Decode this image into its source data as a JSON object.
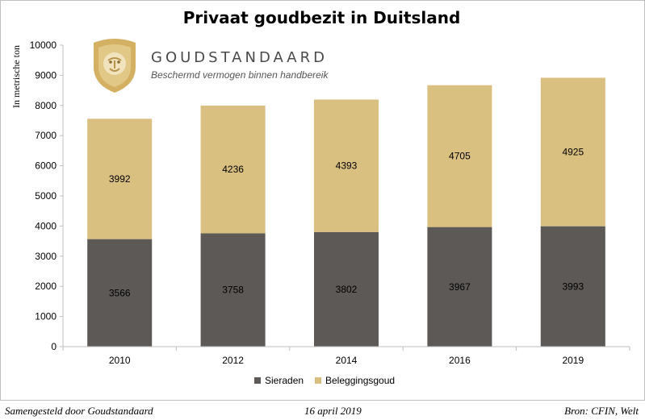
{
  "colors": {
    "sieraden": "#5d5956",
    "beleggingsgoud": "#d9bf80",
    "axis": "#bfbfbf",
    "logo_gold": "#d3b062"
  },
  "logo": {
    "brand": "GOUDSTANDAARD",
    "tagline": "Beschermd vermogen binnen handbereik",
    "icon": "lion-shield-icon"
  },
  "footer": {
    "left": "Samengesteld door Goudstandaard",
    "center": "16 april 2019",
    "right": "Bron: CFIN, Welt"
  },
  "chart_data": {
    "type": "bar",
    "stacked": true,
    "title": "Privaat goudbezit in Duitsland",
    "xlabel": "",
    "ylabel": "In metrische ton",
    "ylim": [
      0,
      10000
    ],
    "yticks": [
      0,
      1000,
      2000,
      3000,
      4000,
      5000,
      6000,
      7000,
      8000,
      9000,
      10000
    ],
    "categories": [
      "2010",
      "2012",
      "2014",
      "2016",
      "2019"
    ],
    "series": [
      {
        "name": "Sieraden",
        "values": [
          3566,
          3758,
          3802,
          3967,
          3993
        ]
      },
      {
        "name": "Beleggingsgoud",
        "values": [
          3992,
          4236,
          4393,
          4705,
          4925
        ]
      }
    ],
    "data_labels": true,
    "grid": false,
    "legend": "bottom"
  }
}
